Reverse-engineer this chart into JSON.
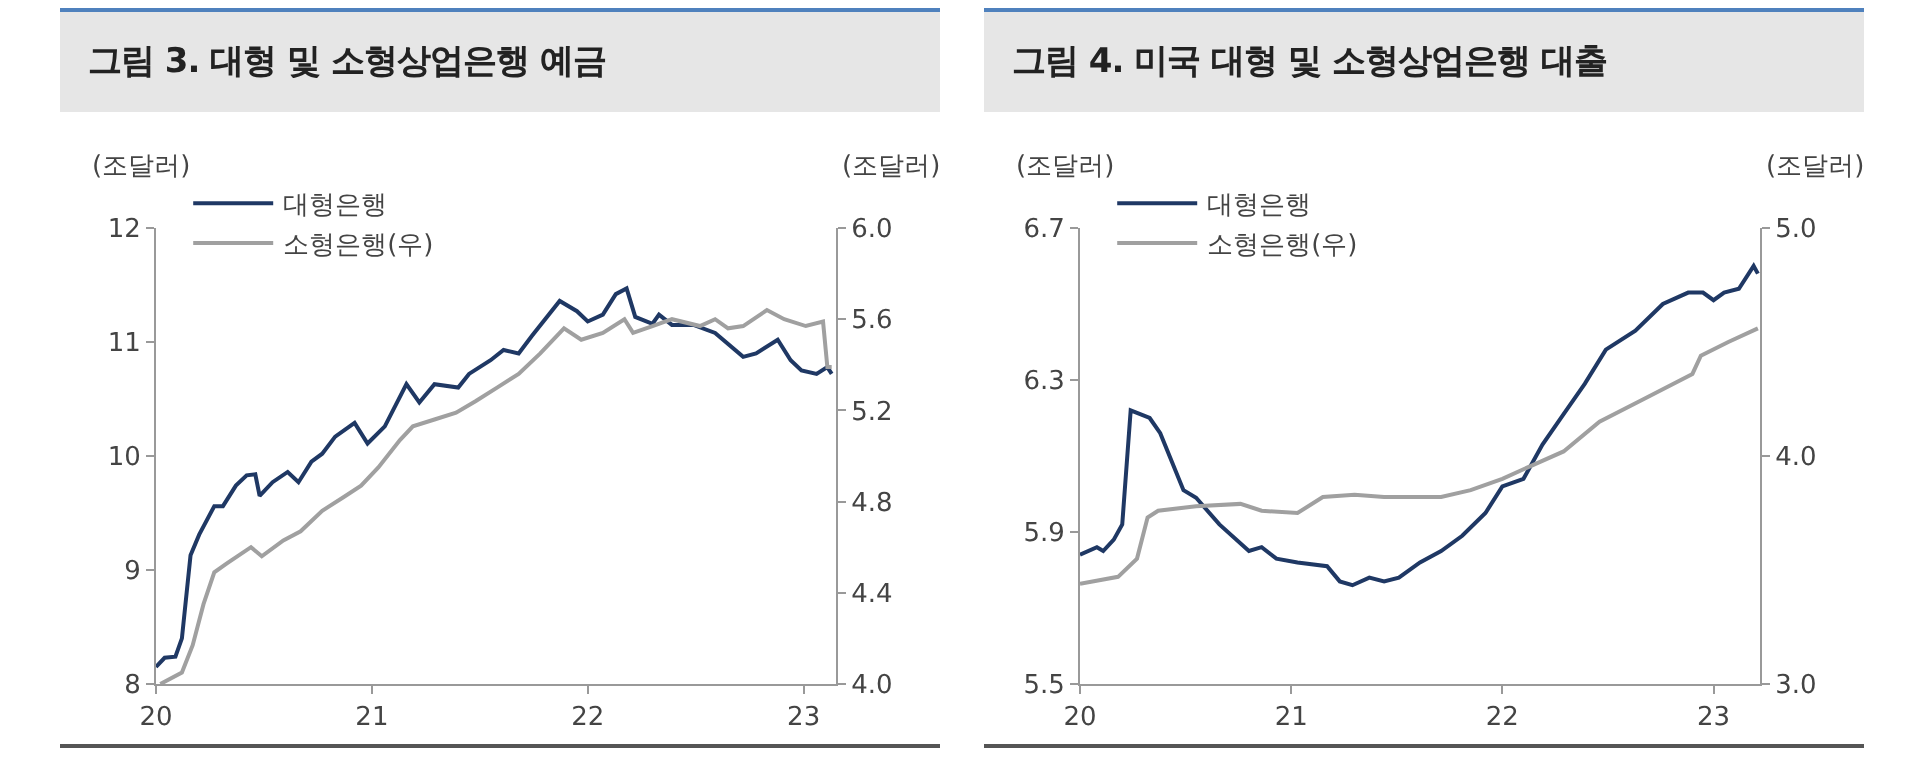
{
  "chart_data": [
    {
      "type": "line",
      "title": "그림 3. 대형 및 소형상업은행  예금",
      "ylabel": "(조달러)",
      "y2label": "(조달러)",
      "legend": "top left",
      "grid": false,
      "xlim": [
        2020,
        2023.15
      ],
      "xticks": [
        {
          "value": 2020,
          "label": "20"
        },
        {
          "value": 2021,
          "label": "21"
        },
        {
          "value": 2022,
          "label": "22"
        },
        {
          "value": 2023,
          "label": "23"
        }
      ],
      "ylim": [
        8,
        12
      ],
      "yticks": [
        8,
        9,
        10,
        11,
        12
      ],
      "y2lim": [
        4,
        6
      ],
      "y2ticks": [
        {
          "value": 4,
          "label": "4.0"
        },
        {
          "value": 4.4,
          "label": "4.4"
        },
        {
          "value": 4.8,
          "label": "4.8"
        },
        {
          "value": 5.2,
          "label": "5.2"
        },
        {
          "value": 5.6,
          "label": "5.6"
        },
        {
          "value": 6,
          "label": "6.0"
        }
      ],
      "series": [
        {
          "name": "대형은행",
          "color": "#1f3864",
          "x": [
            2020.0,
            2020.04,
            2020.09,
            2020.12,
            2020.16,
            2020.2,
            2020.27,
            2020.31,
            2020.37,
            2020.42,
            2020.46,
            2020.48,
            2020.54,
            2020.61,
            2020.66,
            2020.72,
            2020.77,
            2020.83,
            2020.92,
            2020.98,
            2021.06,
            2021.16,
            2021.22,
            2021.29,
            2021.4,
            2021.45,
            2021.55,
            2021.61,
            2021.68,
            2021.74,
            2021.87,
            2021.95,
            2022.0,
            2022.07,
            2022.13,
            2022.18,
            2022.22,
            2022.3,
            2022.33,
            2022.39,
            2022.49,
            2022.59,
            2022.72,
            2022.78,
            2022.88,
            2022.94,
            2022.99,
            2023.06,
            2023.11,
            2023.13
          ],
          "values": [
            8.15,
            8.23,
            8.24,
            8.4,
            9.13,
            9.31,
            9.56,
            9.56,
            9.74,
            9.83,
            9.84,
            9.65,
            9.77,
            9.86,
            9.77,
            9.95,
            10.02,
            10.17,
            10.29,
            10.11,
            10.26,
            10.63,
            10.47,
            10.63,
            10.6,
            10.72,
            10.84,
            10.93,
            10.9,
            11.05,
            11.36,
            11.27,
            11.18,
            11.24,
            11.42,
            11.47,
            11.22,
            11.16,
            11.24,
            11.15,
            11.15,
            11.08,
            10.87,
            10.9,
            11.02,
            10.84,
            10.75,
            10.72,
            10.78,
            10.72
          ]
        },
        {
          "name": "소형은행(우)",
          "color": "#a0a0a0",
          "axis": "y2",
          "x": [
            2020.02,
            2020.12,
            2020.17,
            2020.22,
            2020.27,
            2020.33,
            2020.44,
            2020.49,
            2020.59,
            2020.67,
            2020.77,
            2020.87,
            2020.95,
            2021.03,
            2021.13,
            2021.19,
            2021.29,
            2021.39,
            2021.48,
            2021.58,
            2021.68,
            2021.78,
            2021.89,
            2021.97,
            2022.07,
            2022.17,
            2022.21,
            2022.3,
            2022.39,
            2022.52,
            2022.59,
            2022.65,
            2022.72,
            2022.83,
            2022.91,
            2023.01,
            2023.09,
            2023.11,
            2023.13
          ],
          "values": [
            4.0,
            4.05,
            4.17,
            4.35,
            4.49,
            4.53,
            4.6,
            4.56,
            4.63,
            4.67,
            4.76,
            4.82,
            4.87,
            4.95,
            5.07,
            5.13,
            5.16,
            5.19,
            5.24,
            5.3,
            5.36,
            5.45,
            5.56,
            5.51,
            5.54,
            5.6,
            5.54,
            5.57,
            5.6,
            5.57,
            5.6,
            5.56,
            5.57,
            5.64,
            5.6,
            5.57,
            5.59,
            5.39,
            5.39
          ]
        }
      ]
    },
    {
      "type": "line",
      "title": "그림 4. 미국 대형 및 소형상업은행  대출",
      "ylabel": "(조달러)",
      "y2label": "(조달러)",
      "legend": "top left",
      "grid": false,
      "xlim": [
        2020,
        2023.22
      ],
      "xticks": [
        {
          "value": 2020,
          "label": "20"
        },
        {
          "value": 2021,
          "label": "21"
        },
        {
          "value": 2022,
          "label": "22"
        },
        {
          "value": 2023,
          "label": "23"
        }
      ],
      "ylim": [
        5.5,
        6.7
      ],
      "yticks": [
        5.5,
        5.9,
        6.3,
        6.7
      ],
      "y2lim": [
        3,
        5
      ],
      "y2ticks": [
        {
          "value": 3,
          "label": "3.0"
        },
        {
          "value": 4,
          "label": "4.0"
        },
        {
          "value": 5,
          "label": "5.0"
        }
      ],
      "series": [
        {
          "name": "대형은행",
          "color": "#1f3864",
          "x": [
            2020.0,
            2020.08,
            2020.11,
            2020.16,
            2020.2,
            2020.24,
            2020.33,
            2020.38,
            2020.49,
            2020.55,
            2020.66,
            2020.8,
            2020.86,
            2020.93,
            2021.03,
            2021.17,
            2021.23,
            2021.29,
            2021.37,
            2021.44,
            2021.51,
            2021.61,
            2021.71,
            2021.81,
            2021.92,
            2022.0,
            2022.1,
            2022.19,
            2022.29,
            2022.39,
            2022.49,
            2022.63,
            2022.76,
            2022.88,
            2022.95,
            2023.0,
            2023.05,
            2023.12,
            2023.19,
            2023.21
          ],
          "values": [
            5.84,
            5.86,
            5.85,
            5.88,
            5.92,
            6.22,
            6.2,
            6.16,
            6.01,
            5.99,
            5.92,
            5.85,
            5.86,
            5.83,
            5.82,
            5.81,
            5.77,
            5.76,
            5.78,
            5.77,
            5.78,
            5.82,
            5.85,
            5.89,
            5.95,
            6.02,
            6.04,
            6.13,
            6.21,
            6.29,
            6.38,
            6.43,
            6.5,
            6.53,
            6.53,
            6.51,
            6.53,
            6.54,
            6.6,
            6.58
          ]
        },
        {
          "name": "소형은행(우)",
          "color": "#a0a0a0",
          "axis": "y2",
          "x": [
            2020.0,
            2020.18,
            2020.27,
            2020.32,
            2020.37,
            2020.55,
            2020.76,
            2020.86,
            2021.03,
            2021.15,
            2021.3,
            2021.44,
            2021.71,
            2021.85,
            2022.0,
            2022.12,
            2022.29,
            2022.46,
            2022.67,
            2022.9,
            2022.94,
            2023.07,
            2023.21
          ],
          "values": [
            3.44,
            3.47,
            3.55,
            3.73,
            3.76,
            3.78,
            3.79,
            3.76,
            3.75,
            3.82,
            3.83,
            3.82,
            3.82,
            3.85,
            3.9,
            3.95,
            4.02,
            4.15,
            4.25,
            4.36,
            4.44,
            4.5,
            4.56
          ]
        }
      ]
    }
  ]
}
